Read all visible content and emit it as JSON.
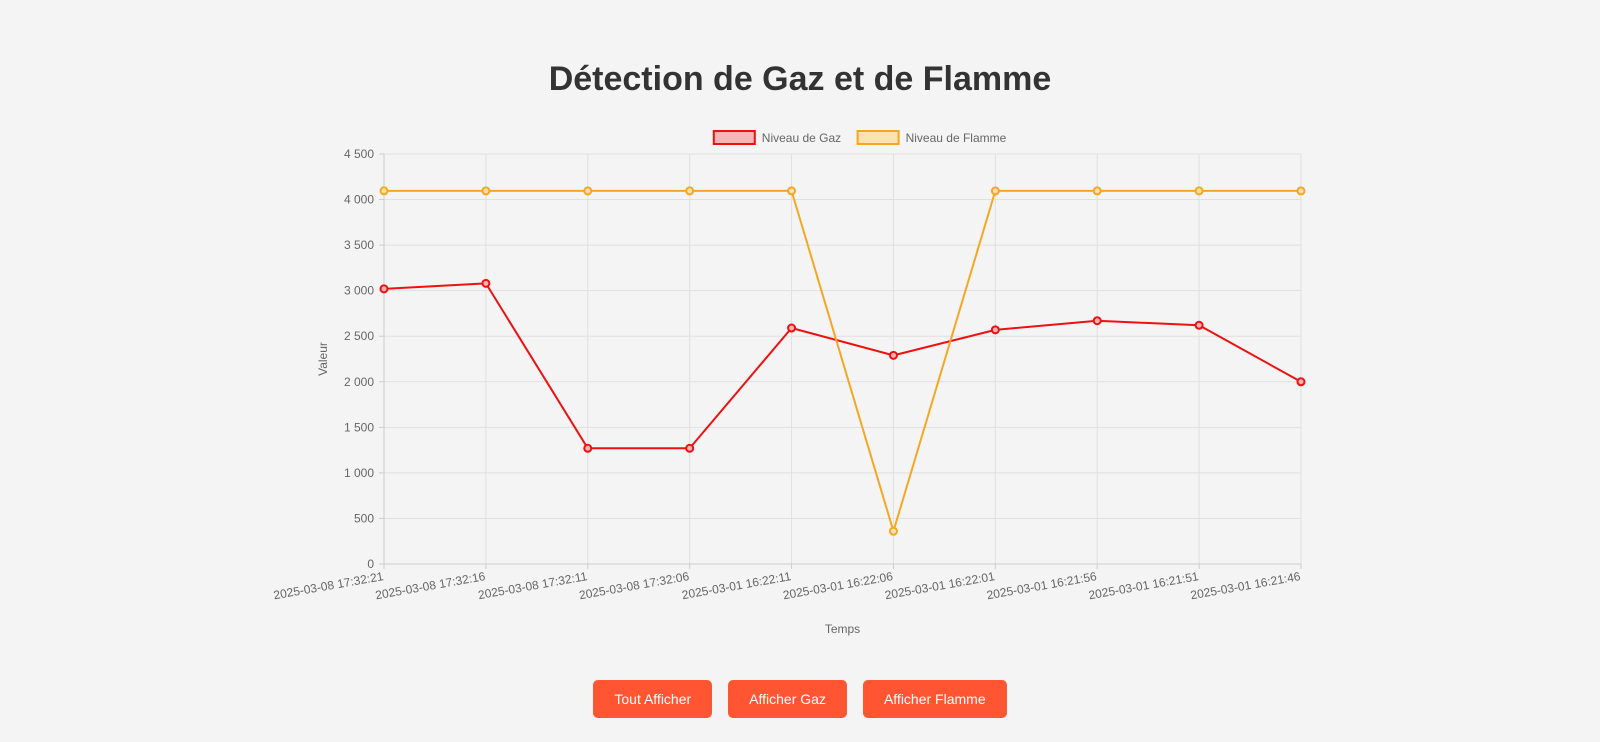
{
  "page": {
    "title": "Détection de Gaz et de Flamme"
  },
  "buttons": {
    "all": "Tout Afficher",
    "gas": "Afficher Gaz",
    "flame": "Afficher Flamme"
  },
  "colors": {
    "gas": "#ee1111",
    "flame": "#f5a623",
    "button": "#ff5533",
    "grid": "#dddddd"
  },
  "chart_data": {
    "type": "line",
    "xlabel": "Temps",
    "ylabel": "Valeur",
    "ylim": [
      0,
      4500
    ],
    "yticks": [
      "0",
      "500",
      "1 000",
      "1 500",
      "2 000",
      "2 500",
      "3 000",
      "3 500",
      "4 000",
      "4 500"
    ],
    "grid": true,
    "legend": "top-center",
    "categories": [
      "2025-03-08 17:32:21",
      "2025-03-08 17:32:16",
      "2025-03-08 17:32:11",
      "2025-03-08 17:32:06",
      "2025-03-01 16:22:11",
      "2025-03-01 16:22:06",
      "2025-03-01 16:22:01",
      "2025-03-01 16:21:56",
      "2025-03-01 16:21:51",
      "2025-03-01 16:21:46"
    ],
    "series": [
      {
        "name": "Niveau de Gaz",
        "color": "#ee1111",
        "fill": "#f8b4b4",
        "values": [
          3020,
          3080,
          1270,
          1270,
          2590,
          2290,
          2570,
          2670,
          2620,
          2000
        ]
      },
      {
        "name": "Niveau de Flamme",
        "color": "#f5a623",
        "fill": "#fbe2b0",
        "values": [
          4095,
          4095,
          4095,
          4095,
          4095,
          360,
          4095,
          4095,
          4095,
          4095
        ]
      }
    ]
  }
}
